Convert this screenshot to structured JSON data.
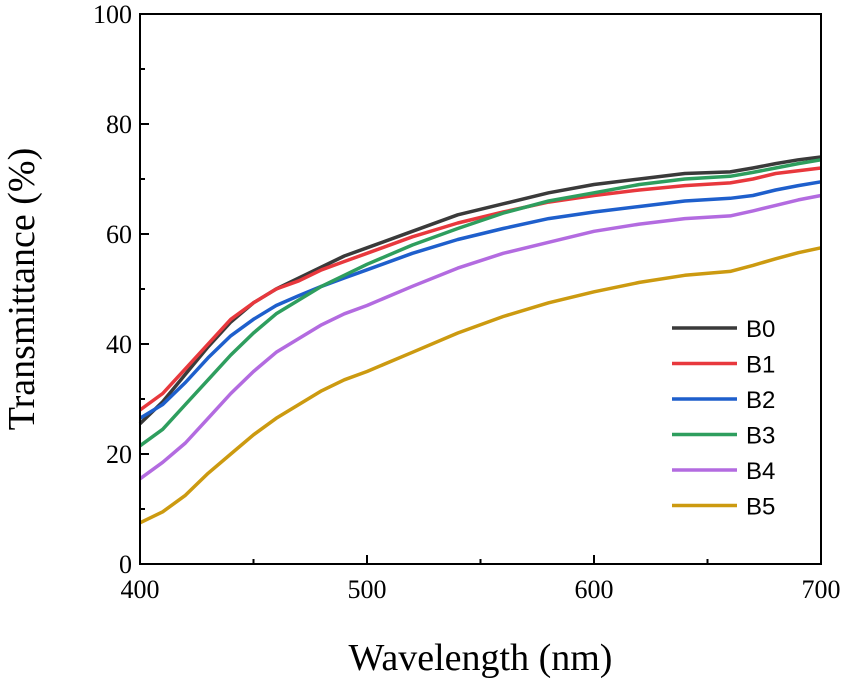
{
  "chart_data": {
    "type": "line",
    "xlabel": "Wavelength (nm)",
    "ylabel": "Transmittance (%)",
    "xlim": [
      400,
      700
    ],
    "ylim": [
      0,
      100
    ],
    "xticks": [
      400,
      500,
      600,
      700
    ],
    "yticks": [
      0,
      20,
      40,
      60,
      80,
      100
    ],
    "grid": false,
    "legend_position": "right",
    "x": [
      400,
      410,
      420,
      430,
      440,
      450,
      460,
      470,
      480,
      490,
      500,
      520,
      540,
      560,
      580,
      600,
      620,
      640,
      660,
      670,
      680,
      690,
      700
    ],
    "series": [
      {
        "name": "B0",
        "color": "#3a3a3a",
        "values": [
          25.5,
          29.5,
          34.5,
          39.5,
          44,
          47.5,
          50,
          52,
          54,
          56,
          57.5,
          60.5,
          63.5,
          65.5,
          67.5,
          69,
          70,
          71,
          71.3,
          72,
          72.8,
          73.5,
          74
        ]
      },
      {
        "name": "B1",
        "color": "#e8383d",
        "values": [
          28,
          31,
          35.5,
          40,
          44.5,
          47.5,
          50,
          51.5,
          53.5,
          55,
          56.5,
          59.5,
          62,
          64,
          65.8,
          67,
          68,
          68.8,
          69.3,
          70,
          71,
          71.5,
          72
        ]
      },
      {
        "name": "B2",
        "color": "#1e5fcc",
        "values": [
          26.5,
          29,
          33,
          37.5,
          41.5,
          44.5,
          47,
          48.8,
          50.5,
          52,
          53.5,
          56.5,
          59,
          61,
          62.8,
          64,
          65,
          66,
          66.5,
          67,
          68,
          68.8,
          69.5
        ]
      },
      {
        "name": "B3",
        "color": "#2e9e5e",
        "values": [
          21.5,
          24.5,
          29,
          33.5,
          38,
          42,
          45.5,
          48,
          50.5,
          52.5,
          54.5,
          58,
          61,
          63.8,
          66,
          67.5,
          69,
          70,
          70.5,
          71.2,
          72,
          72.8,
          73.5
        ]
      },
      {
        "name": "B4",
        "color": "#b36be0",
        "values": [
          15.5,
          18.5,
          22,
          26.5,
          31,
          35,
          38.5,
          41,
          43.5,
          45.5,
          47,
          50.5,
          53.8,
          56.5,
          58.5,
          60.5,
          61.8,
          62.8,
          63.3,
          64.2,
          65.2,
          66.2,
          67
        ]
      },
      {
        "name": "B5",
        "color": "#cc9a10",
        "values": [
          7.5,
          9.5,
          12.5,
          16.5,
          20,
          23.5,
          26.5,
          29,
          31.5,
          33.5,
          35,
          38.5,
          42,
          45,
          47.5,
          49.5,
          51.2,
          52.5,
          53.2,
          54.3,
          55.5,
          56.6,
          57.5
        ]
      }
    ]
  }
}
